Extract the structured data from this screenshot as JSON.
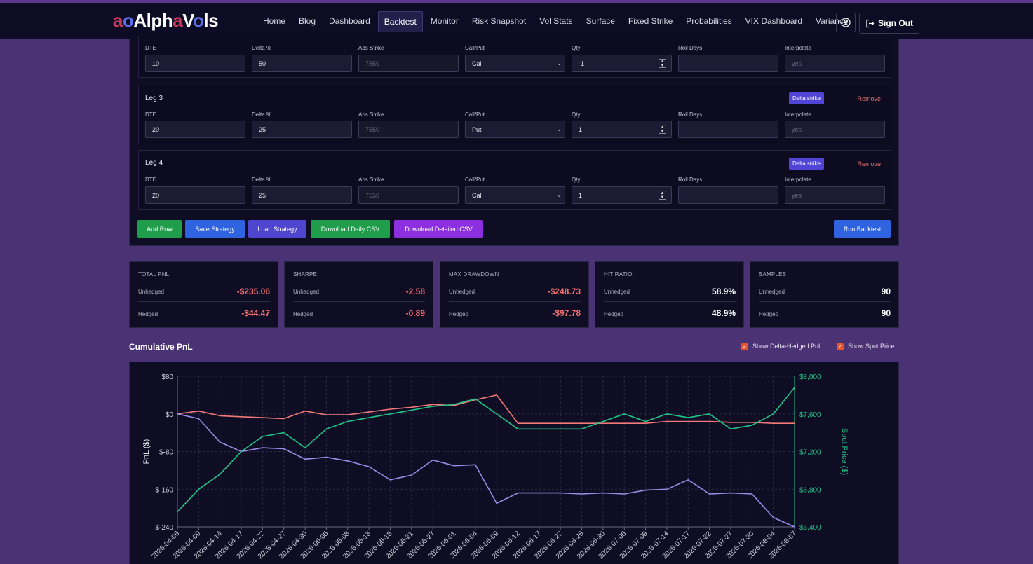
{
  "brand": {
    "part1": "a",
    "part2": "o",
    "part3": "Alph",
    "part4": "a",
    "part5": "V",
    "part6": "o",
    "part7": "ls"
  },
  "nav": {
    "items": [
      {
        "label": "Home"
      },
      {
        "label": "Blog"
      },
      {
        "label": "Dashboard"
      },
      {
        "label": "Backtest",
        "active": true
      },
      {
        "label": "Monitor"
      },
      {
        "label": "Risk Snapshot"
      },
      {
        "label": "Vol Stats"
      },
      {
        "label": "Surface"
      },
      {
        "label": "Fixed Strike"
      },
      {
        "label": "Probabilities"
      },
      {
        "label": "VIX Dashboard"
      },
      {
        "label": "Variance"
      }
    ],
    "sign_out": "Sign Out"
  },
  "labels": {
    "dte": "DTE",
    "delta": "Delta %",
    "abs_strike": "Abs Strike",
    "call_put": "Call/Put",
    "qty": "Qty",
    "roll_days": "Roll Days",
    "interpolate": "Interpolate"
  },
  "legs": [
    {
      "title": "",
      "dte": "10",
      "delta": "50",
      "abs_strike": "7550",
      "call_put": "Call",
      "qty": "-1",
      "roll_days": "",
      "interpolate": "yes"
    },
    {
      "title": "Leg 3",
      "dte": "20",
      "delta": "25",
      "abs_strike": "7550",
      "call_put": "Put",
      "qty": "1",
      "roll_days": "",
      "interpolate": "yes",
      "delta_btn": "Delta strike",
      "remove": "Remove"
    },
    {
      "title": "Leg 4",
      "dte": "20",
      "delta": "25",
      "abs_strike": "7550",
      "call_put": "Call",
      "qty": "1",
      "roll_days": "",
      "interpolate": "yes",
      "delta_btn": "Delta strike",
      "remove": "Remove"
    }
  ],
  "buttons": {
    "add_row": "Add Row",
    "save_strategy": "Save Strategy",
    "load_strategy": "Load Strategy",
    "download_daily": "Download Daily CSV",
    "download_detailed": "Download Detailed CSV",
    "run_backtest": "Run Backtest"
  },
  "stats": [
    {
      "title": "TOTAL PNL",
      "unhedged_label": "Unhedged",
      "unhedged": "-$235.06",
      "hedged_label": "Hedged",
      "hedged": "-$44.47"
    },
    {
      "title": "SHARPE",
      "unhedged_label": "Unhedged",
      "unhedged": "-2.58",
      "hedged_label": "Hedged",
      "hedged": "-0.89"
    },
    {
      "title": "MAX DRAWDOWN",
      "unhedged_label": "Unhedged",
      "unhedged": "-$248.73",
      "hedged_label": "Hedged",
      "hedged": "-$97.78"
    },
    {
      "title": "HIT RATIO",
      "unhedged_label": "Unhedged",
      "unhedged": "58.9%",
      "hedged_label": "Hedged",
      "hedged": "48.9%"
    },
    {
      "title": "SAMPLES",
      "unhedged_label": "Unhedged",
      "unhedged": "90",
      "hedged_label": "Hedged",
      "hedged": "90"
    }
  ],
  "chart_section": {
    "title": "Cumulative PnL",
    "show_hedged": "Show Delta-Hedged PnL",
    "show_spot": "Show Spot Price"
  },
  "colors": {
    "unhedged": "#f47a7a",
    "hedged": "#9a8ee8",
    "spot": "#22c487",
    "accent": "#5145d8"
  },
  "chart_data": {
    "type": "line",
    "ylabel": "PnL ($)",
    "y2label": "Spot Price ($)",
    "ylim": [
      -240,
      80
    ],
    "y2lim": [
      6400,
      8000
    ],
    "yticks": [
      "$80",
      "$0",
      "$-80",
      "$-160",
      "$-240"
    ],
    "y2ticks": [
      "$8,000",
      "$7,600",
      "$7,200",
      "$6,800",
      "$6,400"
    ],
    "x": [
      "2026-04-06",
      "2026-04-09",
      "2026-04-14",
      "2026-04-17",
      "2026-04-22",
      "2026-04-27",
      "2026-04-30",
      "2026-05-05",
      "2026-05-08",
      "2026-05-13",
      "2026-05-18",
      "2026-05-21",
      "2026-05-27",
      "2026-06-01",
      "2026-06-04",
      "2026-06-09",
      "2026-06-12",
      "2026-06-17",
      "2026-06-22",
      "2026-06-25",
      "2026-06-30",
      "2026-07-06",
      "2026-07-09",
      "2026-07-14",
      "2026-07-17",
      "2026-07-22",
      "2026-07-27",
      "2026-07-30",
      "2026-08-04",
      "2026-08-07"
    ],
    "series": [
      {
        "axis": "left",
        "values": [
          0,
          6,
          -4,
          -6,
          -8,
          -10,
          6,
          -2,
          -2,
          4,
          10,
          14,
          20,
          18,
          30,
          40,
          -20,
          -20,
          -20,
          -20,
          -20,
          -20,
          -20,
          -16,
          -16,
          -16,
          -18,
          -18,
          -20,
          -20
        ]
      },
      {
        "axis": "left",
        "values": [
          0,
          -10,
          -60,
          -80,
          -72,
          -74,
          -96,
          -92,
          -100,
          -112,
          -140,
          -130,
          -98,
          -110,
          -108,
          -190,
          -168,
          -168,
          -168,
          -170,
          -168,
          -170,
          -162,
          -160,
          -140,
          -170,
          -168,
          -170,
          -220,
          -240
        ]
      },
      {
        "axis": "right",
        "values": [
          6560,
          6800,
          6960,
          7200,
          7360,
          7400,
          7240,
          7440,
          7520,
          7560,
          7600,
          7640,
          7680,
          7700,
          7760,
          7600,
          7440,
          7440,
          7440,
          7440,
          7520,
          7600,
          7520,
          7600,
          7560,
          7600,
          7440,
          7480,
          7600,
          7880
        ]
      }
    ]
  }
}
